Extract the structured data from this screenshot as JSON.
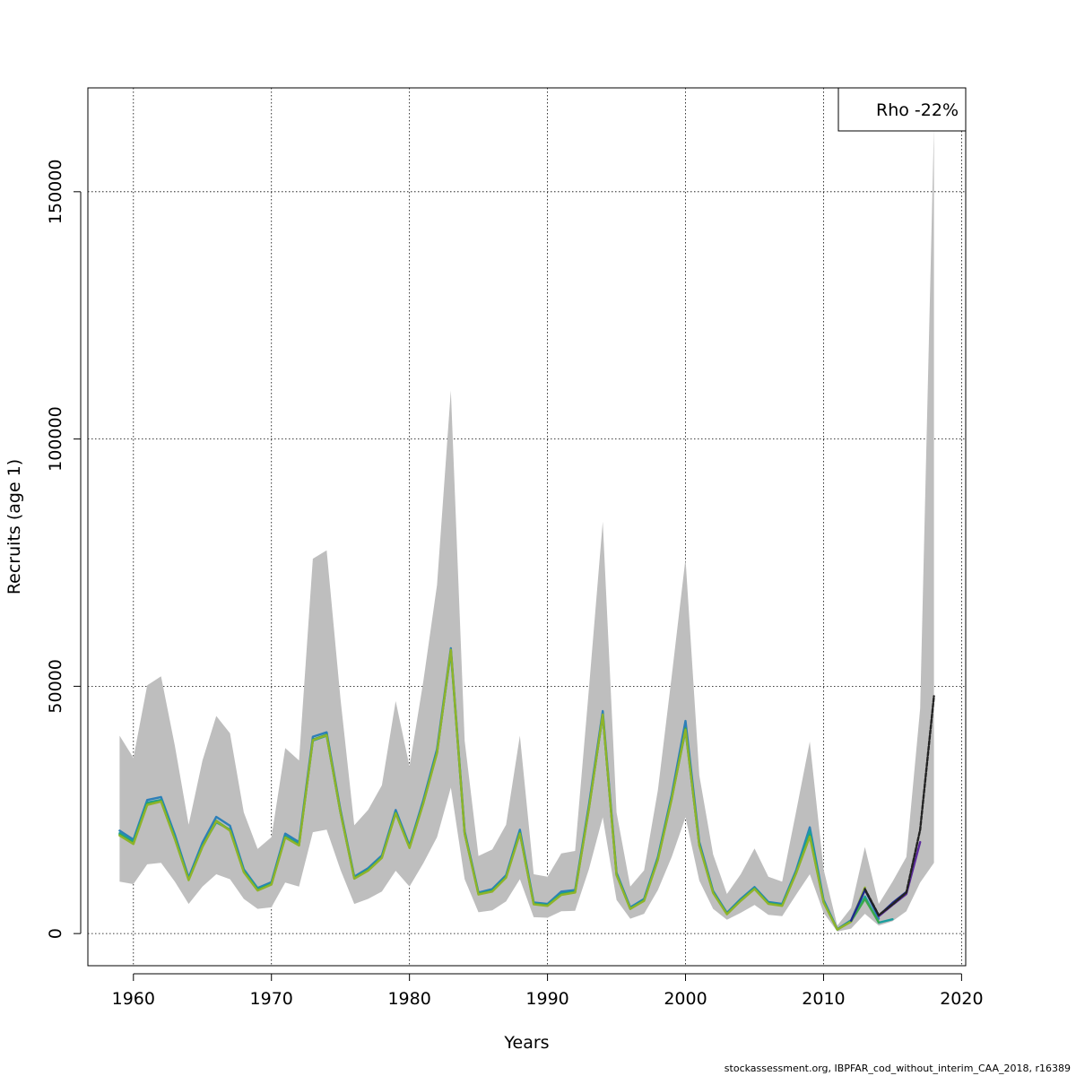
{
  "footer": "stockassessment.org, IBPFAR_cod_without_interim_CAA_2018, r16389",
  "chart_data": {
    "type": "line",
    "title": "",
    "xlabel": "Years",
    "ylabel": "Recruits (age 1)",
    "xlim": [
      1956.7,
      2020.3
    ],
    "ylim": [
      -6500,
      171000
    ],
    "xticks": [
      1960,
      1970,
      1980,
      1990,
      2000,
      2010,
      2020
    ],
    "yticks": [
      0,
      50000,
      100000,
      150000
    ],
    "grid": true,
    "legend": {
      "position": "top-right",
      "text": "Rho -22%"
    },
    "colors": {
      "band": "#bebebe",
      "peels": [
        "#2d7fb8",
        "#1a9e9e",
        "#3aa84a",
        "#8fb32a",
        "#1f2a8c",
        "#5b2a9c"
      ],
      "main": "#2e7d32",
      "terminal": "#222222"
    },
    "confidence_band": {
      "x": [
        1959,
        1960,
        1961,
        1962,
        1963,
        1964,
        1965,
        1966,
        1967,
        1968,
        1969,
        1970,
        1971,
        1972,
        1973,
        1974,
        1975,
        1976,
        1977,
        1978,
        1979,
        1980,
        1981,
        1982,
        1983,
        1984,
        1985,
        1986,
        1987,
        1988,
        1989,
        1990,
        1991,
        1992,
        1993,
        1994,
        1995,
        1996,
        1997,
        1998,
        1999,
        2000,
        2001,
        2002,
        2003,
        2004,
        2005,
        2006,
        2007,
        2008,
        2009,
        2010,
        2011,
        2012,
        2013,
        2014,
        2015,
        2016,
        2017,
        2018
      ],
      "lower": [
        10500,
        10000,
        14000,
        14300,
        10500,
        6000,
        9500,
        12000,
        11000,
        7000,
        5000,
        5300,
        10300,
        9500,
        20500,
        21000,
        12900,
        6000,
        7000,
        8500,
        12700,
        9500,
        14200,
        19500,
        29500,
        11000,
        4300,
        4700,
        6500,
        11000,
        3300,
        3200,
        4500,
        4600,
        13000,
        23500,
        6800,
        3000,
        4000,
        8800,
        15500,
        23500,
        10700,
        5000,
        2800,
        4200,
        5800,
        3800,
        3500,
        7800,
        12000,
        4200,
        400,
        1000,
        4000,
        1600,
        2500,
        4500,
        10300,
        14300
      ],
      "upper": [
        40000,
        35500,
        50200,
        52000,
        38000,
        22000,
        35000,
        44000,
        40500,
        24500,
        17100,
        19500,
        37500,
        35000,
        75800,
        77500,
        47500,
        21900,
        25000,
        30000,
        47000,
        33800,
        51000,
        70500,
        109800,
        39000,
        15700,
        17000,
        22000,
        40000,
        12000,
        11500,
        16200,
        16700,
        49500,
        83300,
        24500,
        9500,
        12800,
        29000,
        52000,
        75800,
        32000,
        16000,
        8000,
        12000,
        17200,
        11500,
        10500,
        24500,
        38800,
        13000,
        1600,
        5200,
        17500,
        6000,
        10500,
        15500,
        45500,
        163000
      ]
    },
    "series": [
      {
        "color": "#2d7fb8",
        "x": [
          1959,
          1960,
          1961,
          1962,
          1963,
          1964,
          1965,
          1966,
          1967,
          1968,
          1969,
          1970,
          1971,
          1972,
          1973,
          1974,
          1975,
          1976,
          1977,
          1978,
          1979,
          1980,
          1981,
          1982,
          1983,
          1984,
          1985,
          1986,
          1987,
          1988,
          1989,
          1990,
          1991,
          1992,
          1993,
          1994,
          1995,
          1996,
          1997,
          1998,
          1999,
          2000,
          2001,
          2002,
          2003,
          2004,
          2005,
          2006,
          2007,
          2008,
          2009,
          2010,
          2011,
          2012,
          2013,
          2014
        ],
        "y": [
          20800,
          19000,
          27000,
          27600,
          20000,
          11300,
          18400,
          23600,
          21800,
          13000,
          9200,
          10400,
          20200,
          18500,
          39800,
          40700,
          25000,
          11500,
          13200,
          15800,
          25000,
          17800,
          27000,
          37300,
          57700,
          20700,
          8300,
          9000,
          11800,
          21000,
          6300,
          6000,
          8500,
          8800,
          26000,
          45000,
          12300,
          5300,
          7000,
          15500,
          28000,
          43000,
          18500,
          8600,
          4200,
          7000,
          9400,
          6400,
          6000,
          12700,
          21500,
          6800,
          900,
          2700,
          9000,
          3000
        ],
        "label": ""
      },
      {
        "color": "#1a9e9e",
        "x": [
          1959,
          1960,
          1961,
          1962,
          1963,
          1964,
          1965,
          1966,
          1967,
          1968,
          1969,
          1970,
          1971,
          1972,
          1973,
          1974,
          1975,
          1976,
          1977,
          1978,
          1979,
          1980,
          1981,
          1982,
          1983,
          1984,
          1985,
          1986,
          1987,
          1988,
          1989,
          1990,
          1991,
          1992,
          1993,
          1994,
          1995,
          1996,
          1997,
          1998,
          1999,
          2000,
          2001,
          2002,
          2003,
          2004,
          2005,
          2006,
          2007,
          2008,
          2009,
          2010,
          2011,
          2012,
          2013,
          2014,
          2015
        ],
        "y": [
          20300,
          18600,
          26500,
          27000,
          19500,
          11000,
          17800,
          22500,
          21000,
          12700,
          9000,
          10100,
          19700,
          18100,
          39000,
          40000,
          24500,
          11300,
          12900,
          15500,
          24500,
          17500,
          26500,
          36800,
          57000,
          20300,
          8100,
          8700,
          11500,
          20500,
          6100,
          5800,
          8100,
          8500,
          25500,
          44200,
          12000,
          5100,
          6800,
          15300,
          27500,
          41000,
          18000,
          8400,
          4000,
          6800,
          9200,
          6200,
          5800,
          12400,
          20800,
          6500,
          800,
          2600,
          7500,
          2200,
          2900
        ],
        "label": ""
      },
      {
        "color": "#3aa84a",
        "x": [
          1959,
          1960,
          1961,
          1962,
          1963,
          1964,
          1965,
          1966,
          1967,
          1968,
          1969,
          1970,
          1971,
          1972,
          1973,
          1974,
          1975,
          1976,
          1977,
          1978,
          1979,
          1980,
          1981,
          1982,
          1983,
          1984,
          1985,
          1986,
          1987,
          1988,
          1989,
          1990,
          1991,
          1992,
          1993,
          1994,
          1995,
          1996,
          1997,
          1998,
          1999,
          2000,
          2001,
          2002,
          2003,
          2004,
          2005,
          2006,
          2007,
          2008,
          2009,
          2010,
          2011,
          2012,
          2013,
          2014
        ],
        "y": [
          20000,
          18300,
          26200,
          26800,
          19200,
          10900,
          17600,
          22800,
          20900,
          12500,
          8800,
          10000,
          19500,
          17900,
          39200,
          40200,
          24600,
          11200,
          12800,
          15400,
          24400,
          17400,
          26400,
          36600,
          57300,
          20300,
          8000,
          8600,
          11400,
          20300,
          6000,
          5700,
          7900,
          8400,
          25300,
          44200,
          11900,
          5000,
          6700,
          15000,
          27300,
          41500,
          17900,
          8300,
          4000,
          6700,
          9100,
          6100,
          5700,
          12200,
          19800,
          6400,
          800,
          2500,
          7000,
          2300
        ],
        "label": ""
      },
      {
        "color": "#8fb32a",
        "x": [
          1959,
          1960,
          1961,
          1962,
          1963,
          1964,
          1965,
          1966,
          1967,
          1968,
          1969,
          1970,
          1971,
          1972,
          1973,
          1974,
          1975,
          1976,
          1977,
          1978,
          1979,
          1980,
          1981,
          1982,
          1983,
          1984,
          1985,
          1986,
          1987,
          1988,
          1989,
          1990,
          1991,
          1992,
          1993,
          1994,
          1995,
          1996,
          1997,
          1998,
          1999,
          2000,
          2001,
          2002,
          2003,
          2004,
          2005,
          2006,
          2007,
          2008,
          2009,
          2010,
          2011,
          2012,
          2013
        ],
        "y": [
          19800,
          18100,
          26000,
          26700,
          19100,
          10800,
          17500,
          22700,
          20800,
          12400,
          8700,
          9900,
          19400,
          17800,
          39100,
          40100,
          24500,
          11100,
          12700,
          15300,
          24300,
          17300,
          26300,
          36500,
          57400,
          20200,
          7900,
          8500,
          11300,
          20200,
          5900,
          5600,
          7800,
          8300,
          25200,
          44300,
          11800,
          5000,
          6600,
          14900,
          27200,
          41200,
          17800,
          8200,
          3900,
          6600,
          9000,
          6000,
          5600,
          12100,
          19600,
          6300,
          800,
          2400,
          9300
        ],
        "label": ""
      },
      {
        "color": "#1f2a8c",
        "x": [
          2012,
          2013,
          2014,
          2015,
          2016
        ],
        "y": [
          2600,
          8800,
          3600,
          6200,
          8400
        ],
        "label": ""
      },
      {
        "color": "#5b2a9c",
        "x": [
          2014,
          2015,
          2016,
          2017
        ],
        "y": [
          3500,
          5800,
          8000,
          18500
        ],
        "label": ""
      },
      {
        "color": "#222222",
        "x": [
          2013,
          2014,
          2015,
          2016,
          2017,
          2018
        ],
        "y": [
          9000,
          3700,
          5900,
          8300,
          21000,
          48000
        ],
        "label": ""
      }
    ]
  }
}
